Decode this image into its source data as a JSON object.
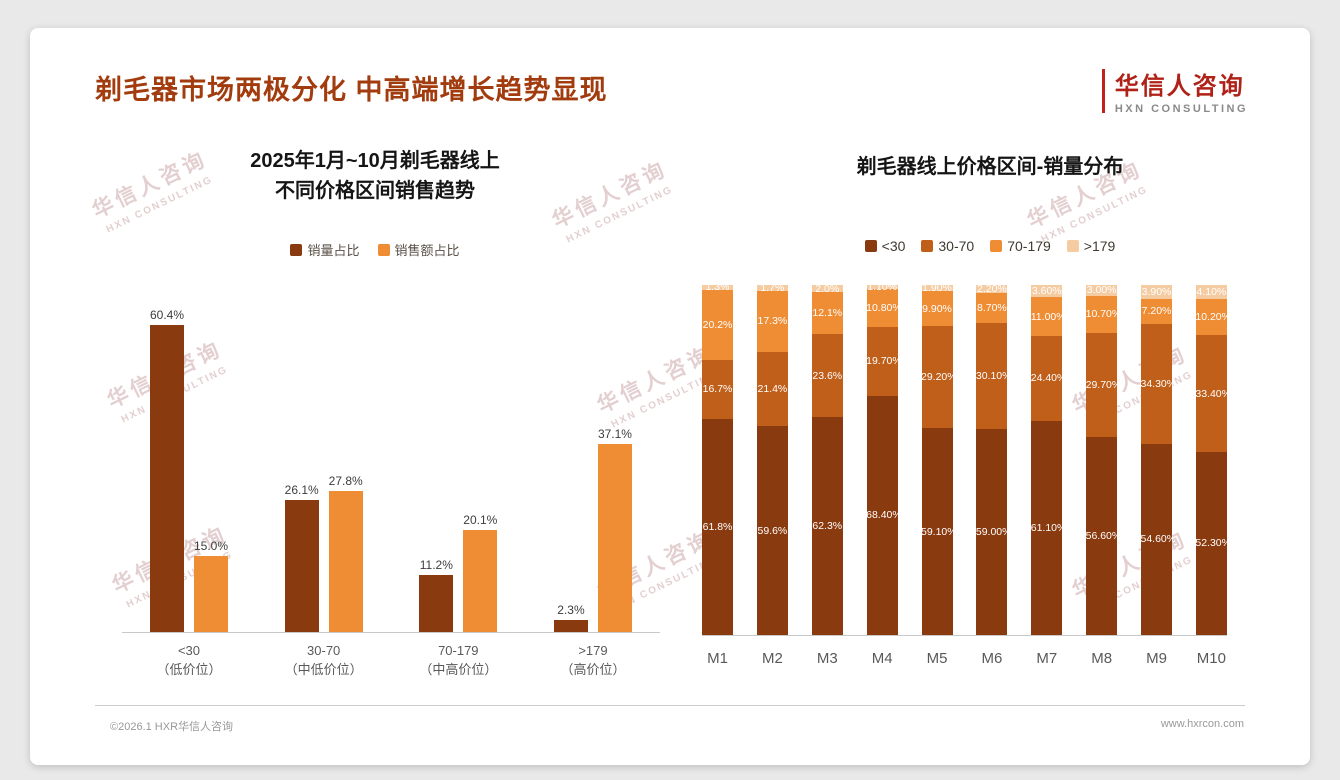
{
  "slide": {
    "title": "剃毛器市场两极分化 中高端增长趋势显现",
    "logo": {
      "cn": "华信人咨询",
      "en": "HXN CONSULTING"
    },
    "watermark": {
      "cn": "华信人咨询",
      "en": "HXN CONSULTING"
    },
    "footer": {
      "copyright": "©2026.1 HXR华信人咨询",
      "website": "www.hxrcon.com"
    }
  },
  "colors": {
    "title": "#A23B0D",
    "logo_red": "#B02218",
    "dark_brown": "#8A3A0F",
    "mid_orange": "#C05F1A",
    "orange": "#EF8D35",
    "light_orange": "#F5CBA2",
    "axis": "#C9C9C9",
    "label_gray": "#595959",
    "footer_gray": "#999999"
  },
  "chart_data": [
    {
      "type": "bar",
      "stacked": false,
      "title_lines": [
        "2025年1月~10月剃毛器线上",
        "不同价格区间销售趋势"
      ],
      "categories": [
        "<30",
        "30-70",
        "70-179",
        ">179"
      ],
      "category_sublabels": [
        "（低价位）",
        "（中低价位）",
        "（中高价位）",
        "（高价位）"
      ],
      "series": [
        {
          "name": "销量占比",
          "color": "#8A3A0F",
          "values": [
            60.4,
            26.1,
            11.2,
            2.3
          ],
          "labels": [
            "60.4%",
            "26.1%",
            "11.2%",
            "2.3%"
          ]
        },
        {
          "name": "销售额占比",
          "color": "#EF8D35",
          "values": [
            15.0,
            27.8,
            20.1,
            37.1
          ],
          "labels": [
            "15.0%",
            "27.8%",
            "20.1%",
            "37.1%"
          ]
        }
      ],
      "xlabel": "",
      "ylabel": "",
      "ylim": [
        0,
        65
      ],
      "grid": false,
      "legend_position": "top",
      "value_labels": "above bars"
    },
    {
      "type": "bar",
      "stacked": true,
      "title": "剃毛器线上价格区间-销量分布",
      "categories": [
        "M1",
        "M2",
        "M3",
        "M4",
        "M5",
        "M6",
        "M7",
        "M8",
        "M9",
        "M10"
      ],
      "series": [
        {
          "name": "<30",
          "color": "#8A3A0F",
          "values": [
            61.8,
            59.6,
            62.3,
            68.4,
            59.1,
            59.0,
            61.1,
            56.6,
            54.6,
            52.3
          ],
          "labels": [
            "61.8%",
            "59.6%",
            "62.3%",
            "68.40%",
            "59.10%",
            "59.00%",
            "61.10%",
            "56.60%",
            "54.60%",
            "52.30%"
          ]
        },
        {
          "name": "30-70",
          "color": "#C05F1A",
          "values": [
            16.7,
            21.4,
            23.6,
            19.7,
            29.2,
            30.1,
            24.4,
            29.7,
            34.3,
            33.4
          ],
          "labels": [
            "16.7%",
            "21.4%",
            "23.6%",
            "19.70%",
            "29.20%",
            "30.10%",
            "24.40%",
            "29.70%",
            "34.30%",
            "33.40%"
          ]
        },
        {
          "name": "70-179",
          "color": "#EF8D35",
          "values": [
            20.2,
            17.3,
            12.1,
            10.8,
            9.9,
            8.7,
            11.0,
            10.7,
            7.2,
            10.2
          ],
          "labels": [
            "20.2%",
            "17.3%",
            "12.1%",
            "10.80%",
            "9.90%",
            "8.70%",
            "11.00%",
            "10.70%",
            "7.20%",
            "10.20%"
          ]
        },
        {
          "name": ">179",
          "color": "#F5CBA2",
          "values": [
            1.3,
            1.7,
            2.0,
            1.1,
            1.9,
            2.2,
            3.6,
            3.0,
            3.9,
            4.1
          ],
          "labels": [
            "1.3%",
            "1.7%",
            "2.0%",
            "1.10%",
            "1.90%",
            "2.20%",
            "3.60%",
            "3.00%",
            "3.90%",
            "4.10%"
          ]
        }
      ],
      "xlabel": "",
      "ylabel": "",
      "ylim": [
        0,
        100
      ],
      "grid": false,
      "legend_position": "top",
      "value_labels": "inside segments, white"
    }
  ]
}
